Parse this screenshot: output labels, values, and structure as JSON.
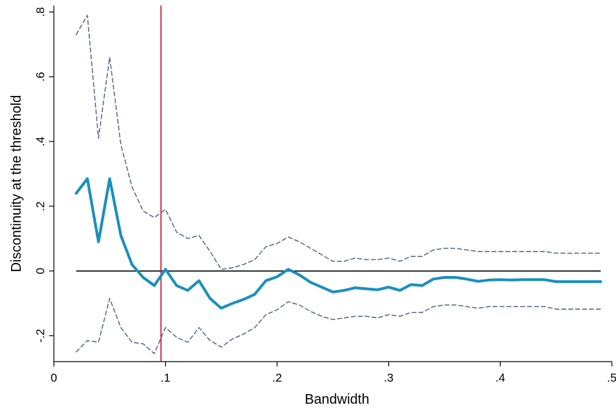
{
  "chart_data": {
    "type": "line",
    "title": "",
    "xlabel": "Bandwidth",
    "ylabel": "Discontinuity at the threshold",
    "xlim": [
      0,
      0.5
    ],
    "ylim": [
      -0.28,
      0.82
    ],
    "x_ticks": [
      0,
      0.1,
      0.2,
      0.3,
      0.4,
      0.5
    ],
    "x_tick_labels": [
      "0",
      ".1",
      ".2",
      ".3",
      ".4",
      ".5"
    ],
    "y_ticks": [
      -0.2,
      0,
      0.2,
      0.4,
      0.6,
      0.8
    ],
    "y_tick_labels": [
      "-.2",
      "0",
      ".2",
      ".4",
      ".6",
      ".8"
    ],
    "grid": false,
    "legend": "none",
    "reference_lines": {
      "horizontal_y": 0,
      "vertical_x": 0.096,
      "horizontal_color": "#000000",
      "vertical_color": "#c8102e"
    },
    "x": [
      0.02,
      0.03,
      0.04,
      0.05,
      0.06,
      0.07,
      0.08,
      0.09,
      0.1,
      0.11,
      0.12,
      0.13,
      0.14,
      0.15,
      0.16,
      0.17,
      0.18,
      0.19,
      0.2,
      0.21,
      0.22,
      0.23,
      0.24,
      0.25,
      0.26,
      0.27,
      0.28,
      0.29,
      0.3,
      0.31,
      0.32,
      0.33,
      0.34,
      0.35,
      0.36,
      0.37,
      0.38,
      0.39,
      0.4,
      0.41,
      0.42,
      0.43,
      0.44,
      0.45,
      0.46,
      0.47,
      0.48,
      0.49
    ],
    "series": [
      {
        "style": "estimate",
        "color": "#1a8fbf",
        "values": [
          0.24,
          0.285,
          0.09,
          0.285,
          0.11,
          0.02,
          -0.02,
          -0.045,
          0.005,
          -0.045,
          -0.06,
          -0.03,
          -0.085,
          -0.115,
          -0.1,
          -0.088,
          -0.072,
          -0.03,
          -0.018,
          0.005,
          -0.012,
          -0.035,
          -0.05,
          -0.065,
          -0.06,
          -0.052,
          -0.055,
          -0.058,
          -0.05,
          -0.06,
          -0.042,
          -0.045,
          -0.025,
          -0.02,
          -0.02,
          -0.025,
          -0.032,
          -0.028,
          -0.027,
          -0.028,
          -0.027,
          -0.027,
          -0.027,
          -0.033,
          -0.033,
          -0.033,
          -0.033,
          -0.033
        ]
      },
      {
        "style": "upper-ci",
        "color": "#4d5f80",
        "values": [
          0.73,
          0.79,
          0.41,
          0.66,
          0.39,
          0.26,
          0.185,
          0.165,
          0.19,
          0.12,
          0.1,
          0.11,
          0.06,
          0.005,
          0.01,
          0.02,
          0.035,
          0.075,
          0.085,
          0.105,
          0.09,
          0.07,
          0.05,
          0.03,
          0.03,
          0.04,
          0.035,
          0.035,
          0.04,
          0.03,
          0.045,
          0.045,
          0.065,
          0.07,
          0.07,
          0.065,
          0.06,
          0.06,
          0.06,
          0.06,
          0.06,
          0.06,
          0.06,
          0.055,
          0.055,
          0.055,
          0.055,
          0.055
        ]
      },
      {
        "style": "lower-ci",
        "color": "#4d5f80",
        "values": [
          -0.25,
          -0.215,
          -0.22,
          -0.085,
          -0.175,
          -0.22,
          -0.225,
          -0.255,
          -0.175,
          -0.205,
          -0.22,
          -0.175,
          -0.215,
          -0.235,
          -0.21,
          -0.195,
          -0.175,
          -0.135,
          -0.12,
          -0.095,
          -0.105,
          -0.125,
          -0.14,
          -0.15,
          -0.145,
          -0.14,
          -0.14,
          -0.145,
          -0.135,
          -0.14,
          -0.128,
          -0.128,
          -0.11,
          -0.105,
          -0.105,
          -0.11,
          -0.115,
          -0.11,
          -0.11,
          -0.11,
          -0.11,
          -0.11,
          -0.11,
          -0.118,
          -0.118,
          -0.118,
          -0.118,
          -0.118
        ]
      }
    ]
  }
}
